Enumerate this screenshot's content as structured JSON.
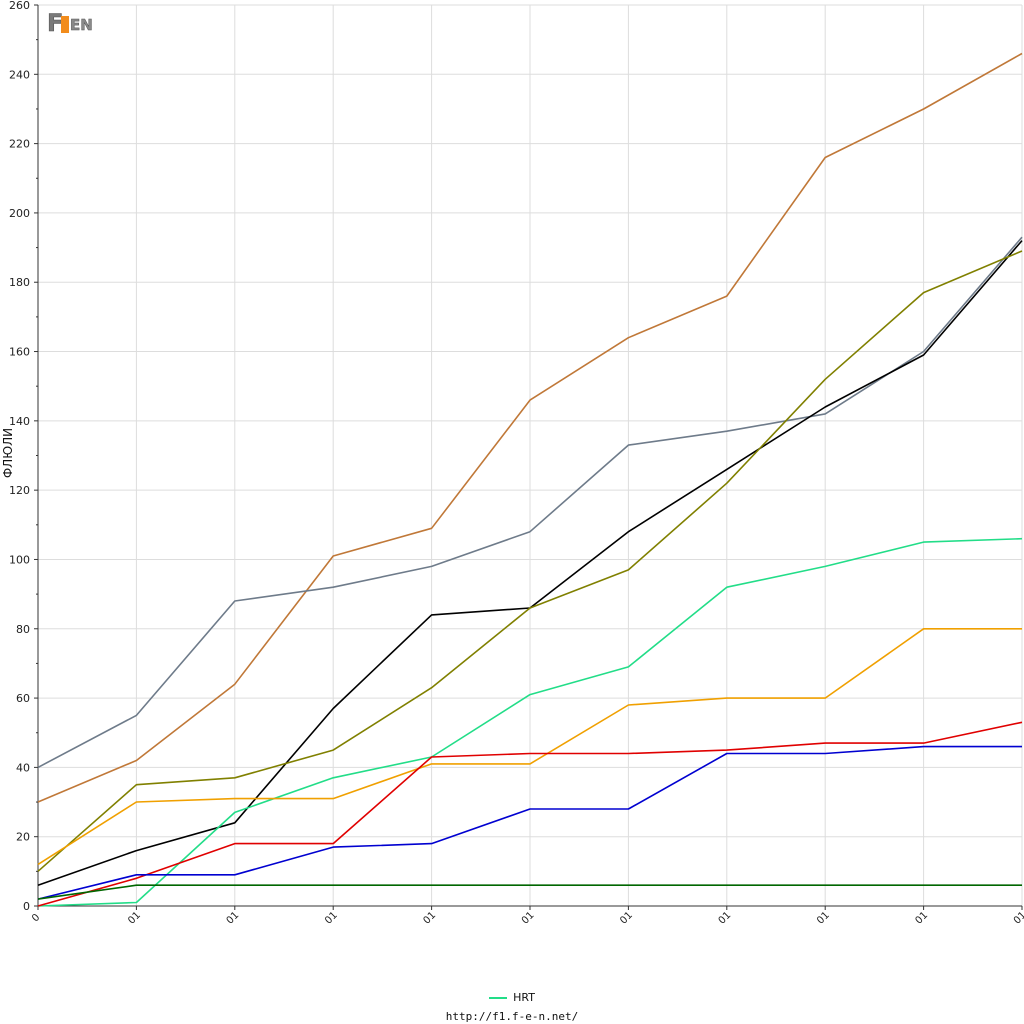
{
  "logo_text": "F1EN",
  "footer_url": "http://f1.f-e-n.net/",
  "chart_data": {
    "type": "line",
    "ylabel": "ФЛЮЛИ",
    "ylim": [
      0,
      260
    ],
    "yticks": [
      0,
      20,
      40,
      60,
      80,
      100,
      120,
      140,
      160,
      180,
      200,
      220,
      240,
      260
    ],
    "x_tick_labels": [
      "0",
      "01",
      "01",
      "01",
      "01",
      "01",
      "01",
      "01",
      "01",
      "01",
      "01"
    ],
    "x": [
      0,
      1,
      2,
      3,
      4,
      5,
      6,
      7,
      8,
      9,
      10
    ],
    "grid": true,
    "legend_position": "bottom-center",
    "legend": [
      {
        "name": "HRT",
        "color": "#22dd88"
      }
    ],
    "series": [
      {
        "color": "#c07838",
        "values": [
          30,
          42,
          64,
          101,
          109,
          146,
          164,
          176,
          216,
          230,
          246
        ]
      },
      {
        "color": "#6e7b8a",
        "values": [
          40,
          55,
          88,
          92,
          98,
          108,
          133,
          137,
          142,
          160,
          193
        ]
      },
      {
        "color": "#000000",
        "values": [
          6,
          16,
          24,
          57,
          84,
          86,
          108,
          126,
          144,
          159,
          192
        ]
      },
      {
        "color": "#808000",
        "values": [
          10,
          35,
          37,
          45,
          63,
          86,
          97,
          122,
          152,
          177,
          189
        ]
      },
      {
        "name": "HRT",
        "color": "#22dd88",
        "values": [
          0,
          1,
          27,
          37,
          43,
          61,
          69,
          92,
          98,
          105,
          106
        ]
      },
      {
        "color": "#f0a000",
        "values": [
          12,
          30,
          31,
          31,
          41,
          41,
          58,
          60,
          60,
          80,
          80
        ]
      },
      {
        "color": "#e00000",
        "values": [
          0,
          8,
          18,
          18,
          43,
          44,
          44,
          45,
          47,
          47,
          53
        ]
      },
      {
        "color": "#0000d0",
        "values": [
          2,
          9,
          9,
          17,
          18,
          28,
          28,
          44,
          44,
          46,
          46
        ]
      },
      {
        "color": "#006600",
        "values": [
          2,
          6,
          6,
          6,
          6,
          6,
          6,
          6,
          6,
          6,
          6
        ]
      }
    ]
  }
}
